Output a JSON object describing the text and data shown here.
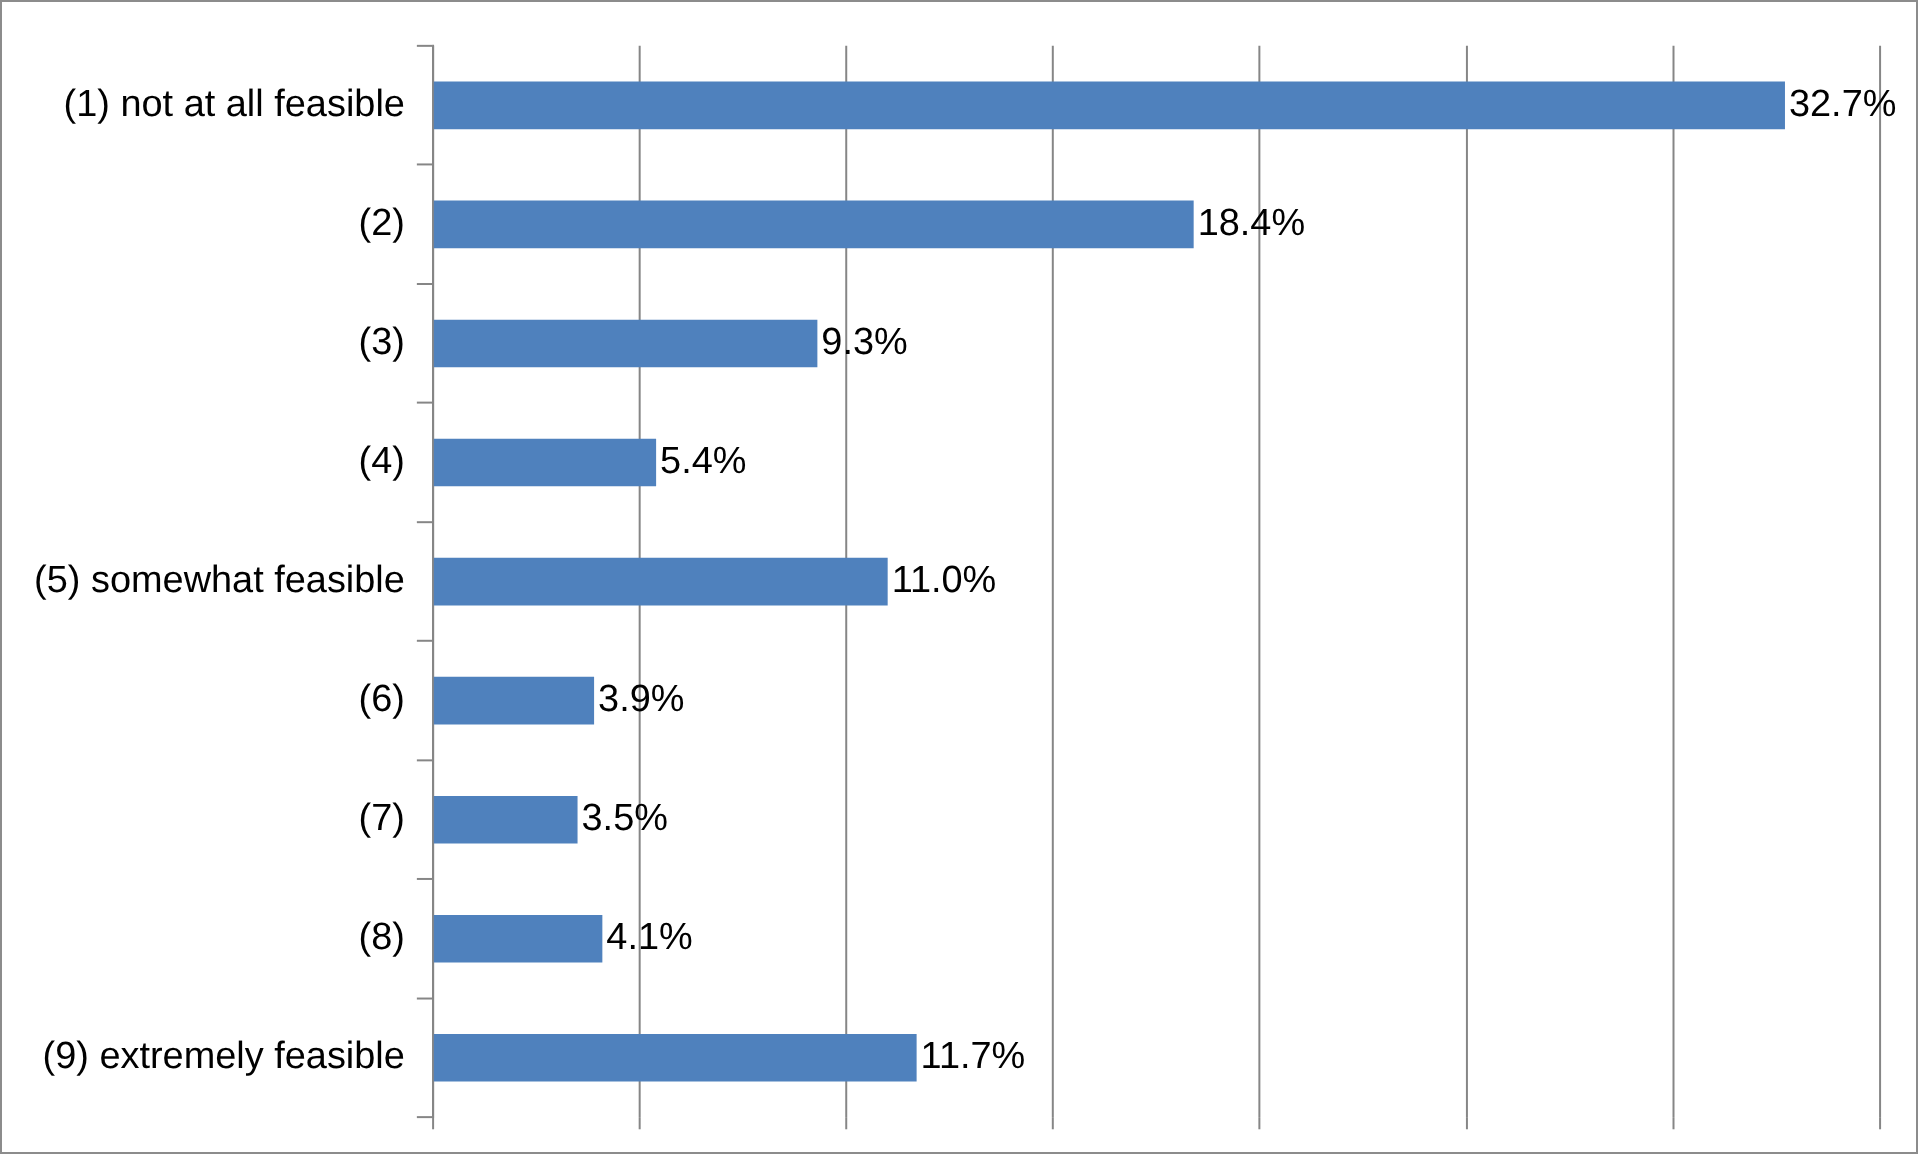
{
  "chart_data": {
    "type": "bar",
    "orientation": "horizontal",
    "categories": [
      "(1) not at all feasible",
      "(2)",
      "(3)",
      "(4)",
      "(5) somewhat feasible",
      "(6)",
      "(7)",
      "(8)",
      "(9) extremely feasible"
    ],
    "values": [
      32.7,
      18.4,
      9.3,
      5.4,
      11.0,
      3.9,
      3.5,
      4.1,
      11.7
    ],
    "value_labels": [
      "32.7%",
      "18.4%",
      "9.3%",
      "5.4%",
      "11.0%",
      "3.9%",
      "3.5%",
      "4.1%",
      "11.7%"
    ],
    "color": "#4f81bd",
    "xlim": [
      0,
      35
    ],
    "xticks": [
      {
        "value": 0,
        "label": null
      },
      {
        "value": 5,
        "label": null
      },
      {
        "value": 10,
        "label": null
      },
      {
        "value": 15,
        "label": null
      },
      {
        "value": 20,
        "label": null
      },
      {
        "value": 25,
        "label": null
      },
      {
        "value": 30,
        "label": null
      },
      {
        "value": 35,
        "label": null
      }
    ],
    "grid": "x",
    "legend": false,
    "tick_labels": "y"
  }
}
